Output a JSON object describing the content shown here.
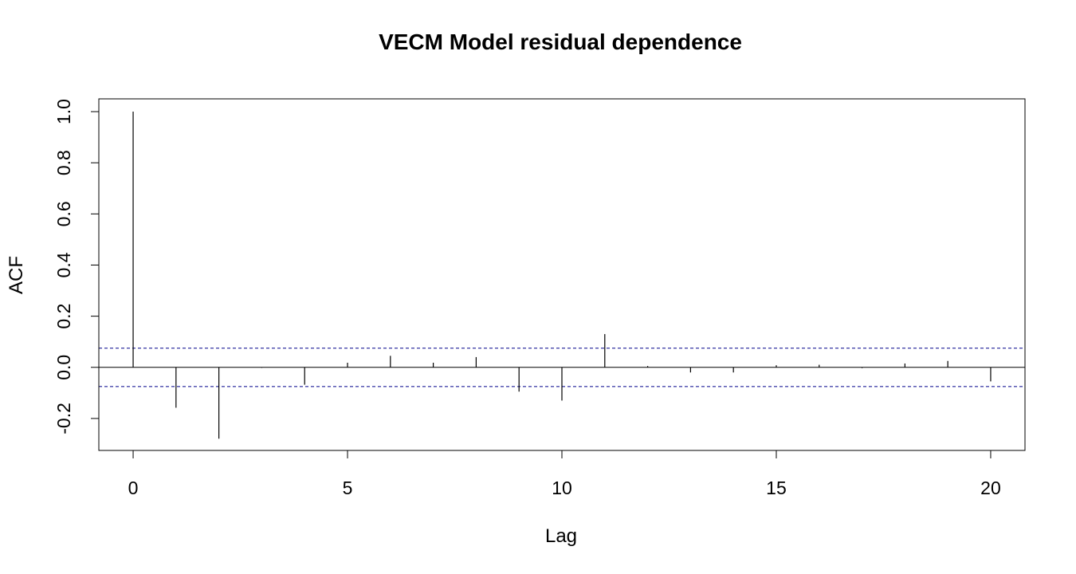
{
  "chart_data": {
    "type": "bar",
    "title": "VECM Model residual dependence",
    "xlabel": "Lag",
    "ylabel": "ACF",
    "xlim": [
      -0.8,
      20.8
    ],
    "ylim": [
      -0.325,
      1.05
    ],
    "x_ticks": [
      0,
      5,
      10,
      15,
      20
    ],
    "x_tick_labels": [
      "0",
      "5",
      "10",
      "15",
      "20"
    ],
    "y_ticks": [
      -0.2,
      0.0,
      0.2,
      0.4,
      0.6,
      0.8,
      1.0
    ],
    "y_tick_labels": [
      "-0.2",
      "0.0",
      "0.2",
      "0.4",
      "0.6",
      "0.8",
      "1.0"
    ],
    "lags": [
      0,
      1,
      2,
      3,
      4,
      5,
      6,
      7,
      8,
      9,
      10,
      11,
      12,
      13,
      14,
      15,
      16,
      17,
      18,
      19,
      20
    ],
    "acf": [
      1.0,
      -0.158,
      -0.279,
      -0.002,
      -0.068,
      0.018,
      0.045,
      0.018,
      0.04,
      -0.095,
      -0.13,
      0.13,
      0.005,
      -0.02,
      -0.02,
      0.008,
      0.01,
      -0.003,
      0.015,
      0.025,
      -0.055
    ],
    "confidence_bound": 0.075,
    "colors": {
      "spike": "#000000",
      "bound": "#00008b",
      "axis": "#000000"
    }
  }
}
